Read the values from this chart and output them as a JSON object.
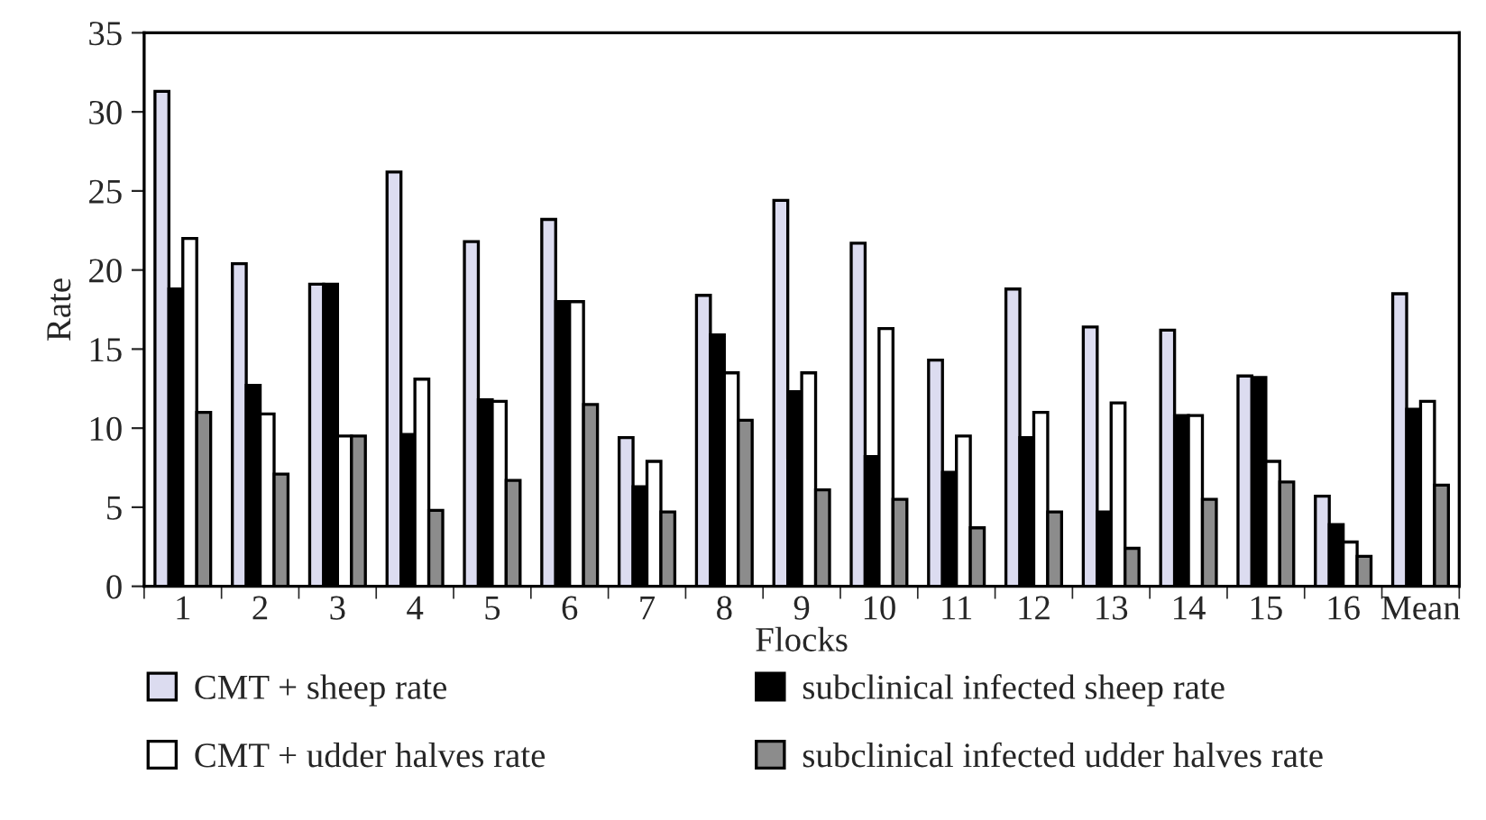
{
  "chart_data": {
    "type": "bar",
    "xlabel": "Flocks",
    "ylabel": "Rate",
    "categories": [
      "1",
      "2",
      "3",
      "4",
      "5",
      "6",
      "7",
      "8",
      "9",
      "10",
      "11",
      "12",
      "13",
      "14",
      "15",
      "16",
      "Mean"
    ],
    "series": [
      {
        "name": "CMT + sheep rate",
        "color": "#dcdcf0",
        "values": [
          31.3,
          20.4,
          19.1,
          26.2,
          21.8,
          23.2,
          9.4,
          18.4,
          24.4,
          21.7,
          14.3,
          18.8,
          16.4,
          16.2,
          13.3,
          5.7,
          18.5
        ]
      },
      {
        "name": "subclinical infected sheep rate",
        "color": "#000000",
        "values": [
          18.8,
          12.7,
          19.1,
          9.6,
          11.8,
          18,
          6.3,
          15.9,
          12.3,
          8.2,
          7.2,
          9.4,
          4.7,
          10.8,
          13.2,
          3.9,
          11.2
        ]
      },
      {
        "name": "CMT + udder halves rate",
        "color": "#ffffff",
        "values": [
          22,
          10.9,
          9.5,
          13.1,
          11.7,
          18,
          7.9,
          13.5,
          13.5,
          16.3,
          9.5,
          11,
          11.6,
          10.8,
          7.9,
          2.8,
          11.7
        ]
      },
      {
        "name": "subclinical infected udder halves rate",
        "color": "#8c8c8c",
        "values": [
          11,
          7.1,
          9.5,
          4.8,
          6.7,
          11.5,
          4.7,
          10.5,
          6.1,
          5.5,
          3.7,
          4.7,
          2.4,
          5.5,
          6.6,
          1.9,
          6.4
        ]
      }
    ],
    "ylim": [
      0,
      35
    ],
    "yticks": [
      0,
      5,
      10,
      15,
      20,
      25,
      30,
      35
    ],
    "grid": false,
    "legend": "bottom"
  }
}
